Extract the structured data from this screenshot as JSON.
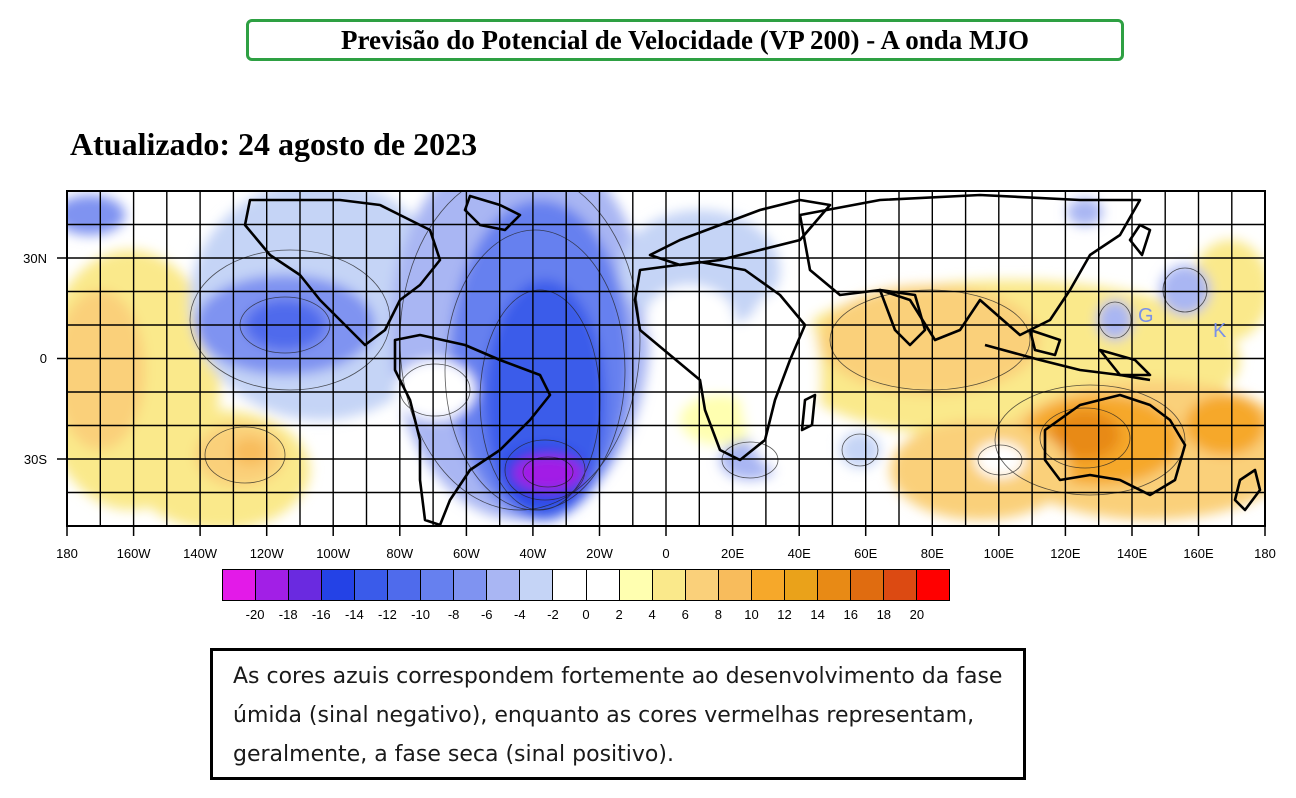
{
  "title": "Previsão do Potencial de Velocidade (VP 200) - A onda MJO",
  "updated": "Atualizado: 24 agosto de 2023",
  "map": {
    "lon_range": [
      -180,
      180
    ],
    "lat_range": [
      -50,
      50
    ],
    "lon_ticks": [
      "180",
      "160W",
      "140W",
      "120W",
      "100W",
      "80W",
      "60W",
      "40W",
      "20W",
      "0",
      "20E",
      "40E",
      "60E",
      "80E",
      "100E",
      "120E",
      "140E",
      "160E",
      "180"
    ],
    "lat_ticks": [
      "30N",
      "0",
      "30S"
    ],
    "annotations": [
      "G",
      "K"
    ],
    "grid_spacing_deg": 10
  },
  "colorbar": {
    "colors": [
      "#e31ae8",
      "#a21fe6",
      "#6a2ae0",
      "#2442e6",
      "#3a5bea",
      "#4f6bec",
      "#6680ef",
      "#7f93f1",
      "#a9b6f3",
      "#c5d4f6",
      "#ffffff",
      "#ffffff",
      "#ffffb0",
      "#fae98b",
      "#fad07a",
      "#f8bc5c",
      "#f6a82a",
      "#eaa21a",
      "#e88a15",
      "#e06c10",
      "#dc4a12",
      "#ff0000"
    ],
    "labels": [
      "-20",
      "-18",
      "-16",
      "-14",
      "-12",
      "-10",
      "-8",
      "-6",
      "-4",
      "-2",
      "0",
      "2",
      "4",
      "6",
      "8",
      "10",
      "12",
      "14",
      "16",
      "18",
      "20"
    ]
  },
  "note": "As cores azuis correspondem fortemente ao desenvolvimento da fase úmida (sinal negativo), enquanto as cores vermelhas representam, geralmente, a fase seca (sinal positivo)."
}
